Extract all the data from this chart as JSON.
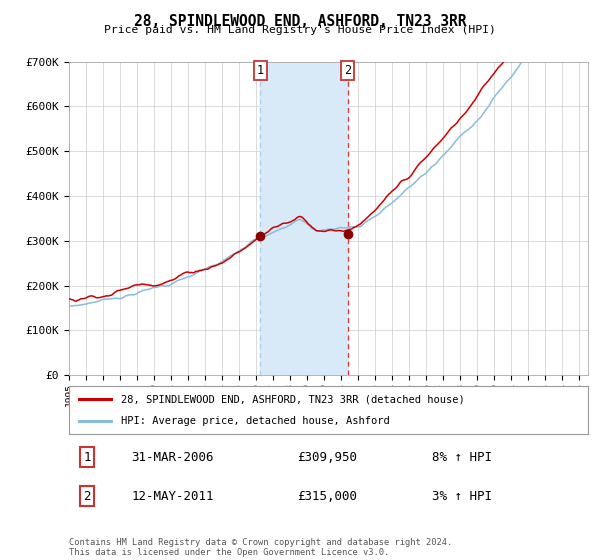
{
  "title": "28, SPINDLEWOOD END, ASHFORD, TN23 3RR",
  "subtitle": "Price paid vs. HM Land Registry's House Price Index (HPI)",
  "y_ticks": [
    0,
    100000,
    200000,
    300000,
    400000,
    500000,
    600000,
    700000
  ],
  "y_tick_labels": [
    "£0",
    "£100K",
    "£200K",
    "£300K",
    "£400K",
    "£500K",
    "£600K",
    "£700K"
  ],
  "transaction1": {
    "date": "31-MAR-2006",
    "price": 309950,
    "hpi_change": "8% ↑ HPI",
    "label": "1"
  },
  "transaction2": {
    "date": "12-MAY-2011",
    "price": 315000,
    "hpi_change": "3% ↑ HPI",
    "label": "2"
  },
  "shade_start": 2006.25,
  "shade_end": 2011.37,
  "vline1_x": 2006.25,
  "vline2_x": 2011.37,
  "dot1_x": 2006.25,
  "dot1_y": 309950,
  "dot2_x": 2011.37,
  "dot2_y": 315000,
  "hpi_line_color": "#8bbcdc",
  "price_line_color": "#cc0000",
  "dot_color": "#880000",
  "shade_color": "#d8eaf8",
  "grid_color": "#cccccc",
  "background_color": "#ffffff",
  "legend_line1": "28, SPINDLEWOOD END, ASHFORD, TN23 3RR (detached house)",
  "legend_line2": "HPI: Average price, detached house, Ashford",
  "footer": "Contains HM Land Registry data © Crown copyright and database right 2024.\nThis data is licensed under the Open Government Licence v3.0.",
  "xlim_left": 1995.0,
  "xlim_right": 2025.5,
  "ylim_bottom": 0,
  "ylim_top": 700000
}
